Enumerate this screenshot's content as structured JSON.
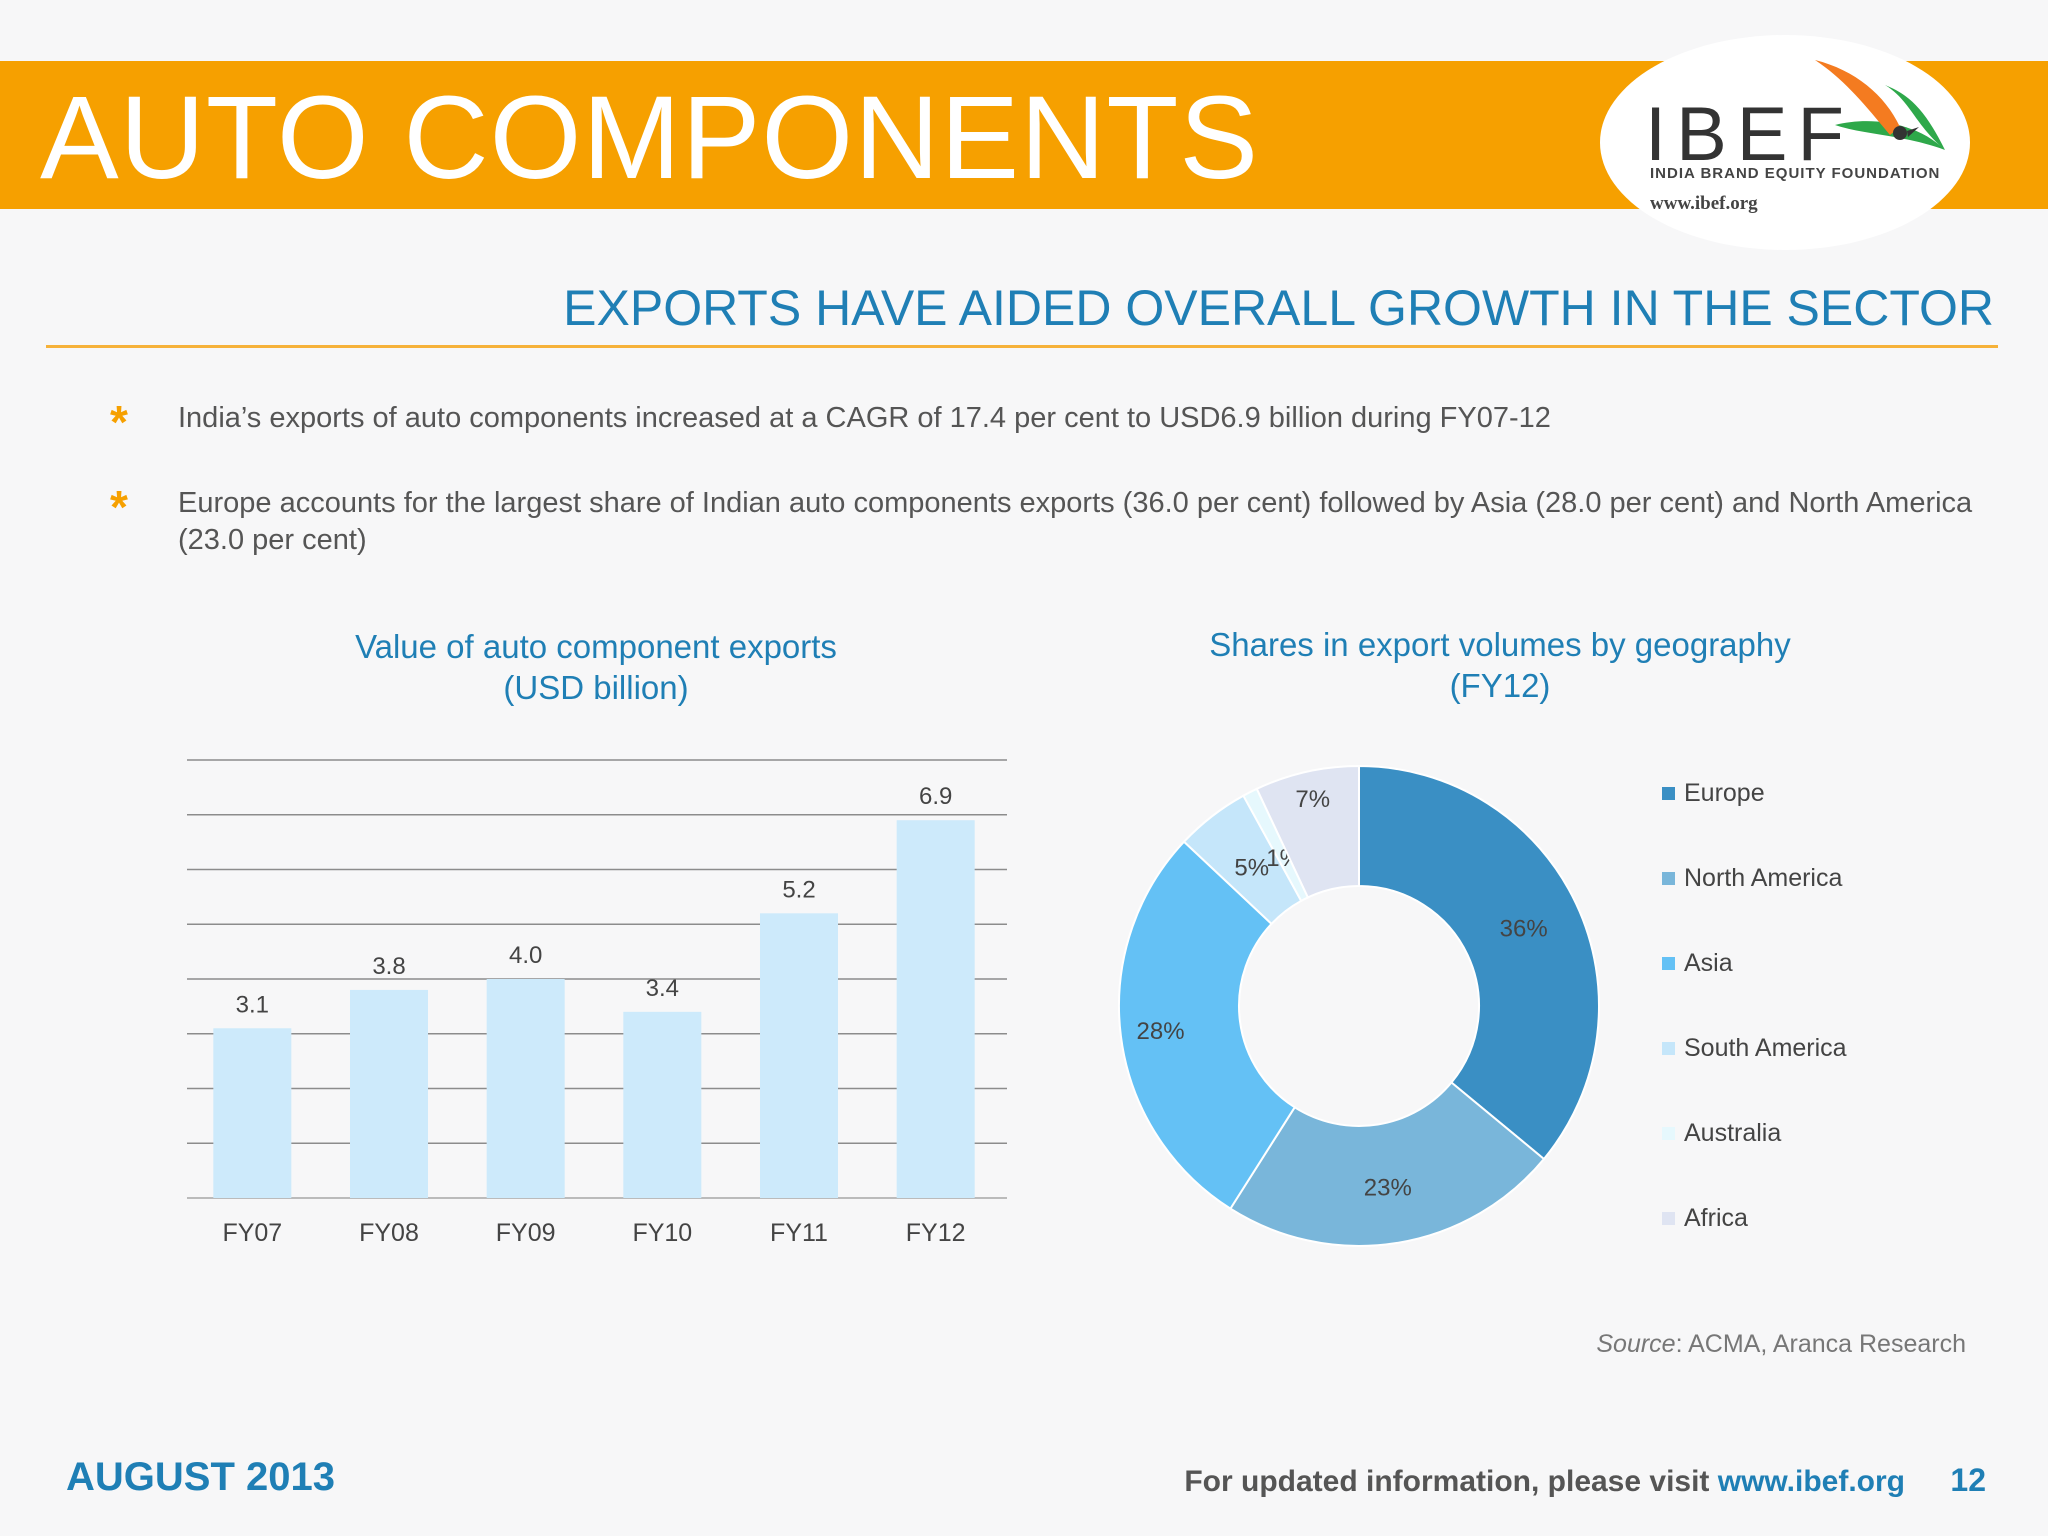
{
  "header": {
    "title": "AUTO COMPONENTS",
    "logo_text": "IBEF",
    "logo_subtext": "INDIA BRAND EQUITY FOUNDATION",
    "logo_url": "www.ibef.org"
  },
  "slide": {
    "subtitle": "EXPORTS HAVE AIDED OVERALL GROWTH IN THE SECTOR",
    "bullets": [
      "India’s exports of auto components increased at a CAGR of 17.4 per cent to USD6.9 billion during FY07-12",
      "Europe accounts for the largest share of Indian auto components exports (36.0 per cent) followed by Asia (28.0 per cent) and North America (23.0 per cent)"
    ],
    "source_label": "Source",
    "source_text": ": ACMA, Aranca Research"
  },
  "footer": {
    "date": "AUGUST 2013",
    "visit_text": "For updated information, please visit ",
    "visit_url": "www.ibef.org",
    "page_number": "12"
  },
  "colors": {
    "banner": "#f6a000",
    "accent_blue": "#1f7fb5",
    "bar_fill": "#cdeafb"
  },
  "chart_data": [
    {
      "type": "bar",
      "title_line1": "Value of auto component exports",
      "title_line2": "(USD billion)",
      "categories": [
        "FY07",
        "FY08",
        "FY09",
        "FY10",
        "FY11",
        "FY12"
      ],
      "values": [
        3.1,
        3.8,
        4.0,
        3.4,
        5.2,
        6.9
      ],
      "data_labels": [
        "3.1",
        "3.8",
        "4.0",
        "3.4",
        "5.2",
        "6.9"
      ],
      "ylim": [
        0,
        8
      ],
      "grid": true
    },
    {
      "type": "pie",
      "donut": true,
      "title_line1": "Shares in export volumes by geography",
      "title_line2": "(FY12)",
      "slices": [
        {
          "name": "Europe",
          "value": 36,
          "label": "36%",
          "color": "#3a8fc4"
        },
        {
          "name": "North America",
          "value": 23,
          "label": "23%",
          "color": "#79b6da"
        },
        {
          "name": "Asia",
          "value": 28,
          "label": "28%",
          "color": "#64c1f5"
        },
        {
          "name": "South America",
          "value": 5,
          "label": "5%",
          "color": "#c5e6fa"
        },
        {
          "name": "Australia",
          "value": 1,
          "label": "1%",
          "color": "#e6f8fd"
        },
        {
          "name": "Africa",
          "value": 7,
          "label": "7%",
          "color": "#dfe4f2"
        }
      ],
      "legend_position": "right"
    }
  ]
}
